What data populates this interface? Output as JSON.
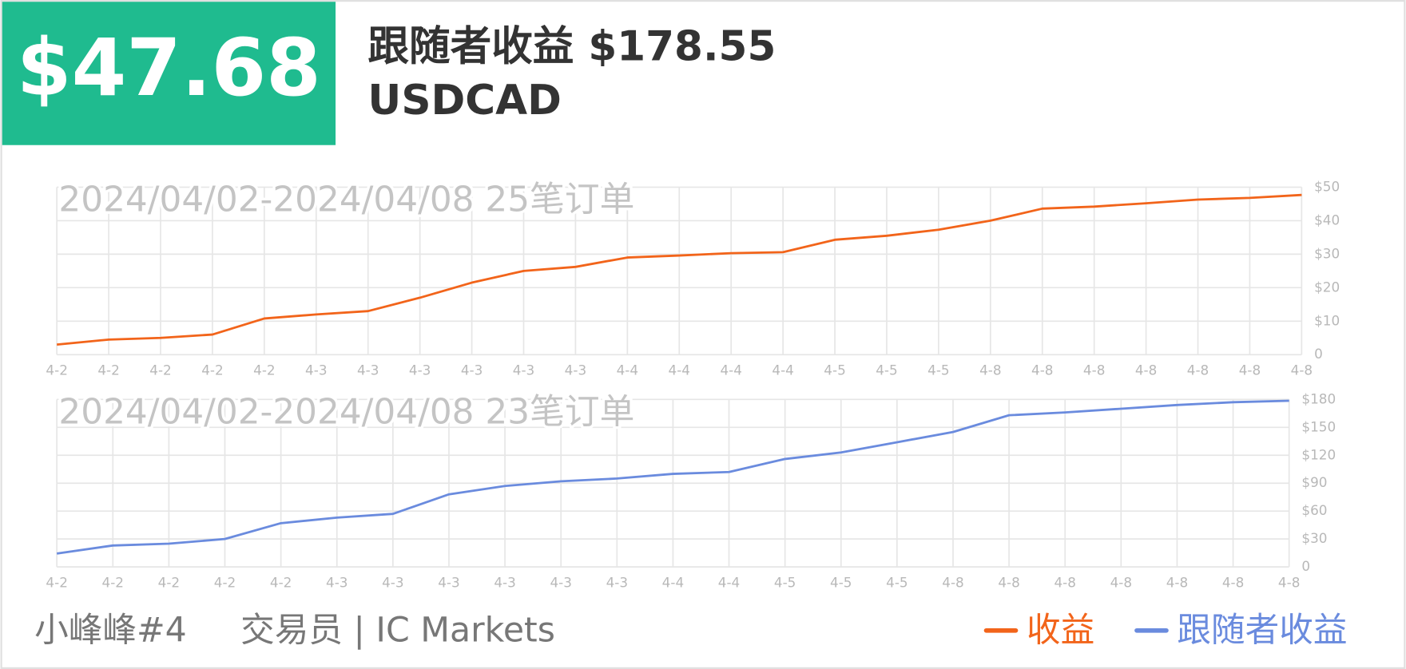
{
  "header": {
    "amount": "$47.68",
    "title": "跟随者收益 $178.55",
    "symbol": "USDCAD"
  },
  "chart_data": [
    {
      "type": "line",
      "subtitle": "2024/04/02-2024/04/08 25笔订单",
      "categories": [
        "4-2",
        "4-2",
        "4-2",
        "4-2",
        "4-2",
        "4-3",
        "4-3",
        "4-3",
        "4-3",
        "4-3",
        "4-3",
        "4-4",
        "4-4",
        "4-4",
        "4-4",
        "4-5",
        "4-5",
        "4-5",
        "4-8",
        "4-8",
        "4-8",
        "4-8",
        "4-8",
        "4-8",
        "4-8"
      ],
      "series": [
        {
          "name": "收益",
          "color": "#f2641a",
          "values": [
            3,
            4.5,
            5,
            6,
            10.8,
            12,
            13,
            17,
            21.5,
            25,
            26.2,
            29,
            29.6,
            30.3,
            30.6,
            34.3,
            35.5,
            37.3,
            40,
            43.6,
            44.2,
            45.2,
            46.3,
            46.8,
            47.68
          ]
        }
      ],
      "ylim": [
        0,
        50
      ],
      "yticks": [
        0,
        {
          "value": 10,
          "label": "$10"
        },
        {
          "value": 20,
          "label": "$20"
        },
        {
          "value": 30,
          "label": "$30"
        },
        {
          "value": 40,
          "label": "$40"
        },
        {
          "value": 50,
          "label": "$50"
        }
      ],
      "grid": true
    },
    {
      "type": "line",
      "subtitle": "2024/04/02-2024/04/08 23笔订单",
      "categories": [
        "4-2",
        "4-2",
        "4-2",
        "4-2",
        "4-2",
        "4-3",
        "4-3",
        "4-3",
        "4-3",
        "4-3",
        "4-3",
        "4-4",
        "4-4",
        "4-5",
        "4-5",
        "4-5",
        "4-8",
        "4-8",
        "4-8",
        "4-8",
        "4-8",
        "4-8",
        "4-8"
      ],
      "series": [
        {
          "name": "跟随者收益",
          "color": "#6a8bde",
          "values": [
            14.4,
            23,
            25,
            30,
            47,
            53,
            57,
            78,
            87,
            92,
            95,
            100,
            102,
            116,
            123,
            134,
            145,
            163,
            166,
            170,
            174,
            177,
            178.55
          ]
        }
      ],
      "ylim": [
        0,
        180
      ],
      "yticks": [
        0,
        {
          "value": 30,
          "label": "$30"
        },
        {
          "value": 60,
          "label": "$60"
        },
        {
          "value": 90,
          "label": "$90"
        },
        {
          "value": 120,
          "label": "$120"
        },
        {
          "value": 150,
          "label": "$150"
        },
        {
          "value": 180,
          "label": "$180"
        }
      ],
      "grid": true
    }
  ],
  "footer": {
    "name": "小峰峰#4",
    "role": "交易员 | IC Markets"
  }
}
